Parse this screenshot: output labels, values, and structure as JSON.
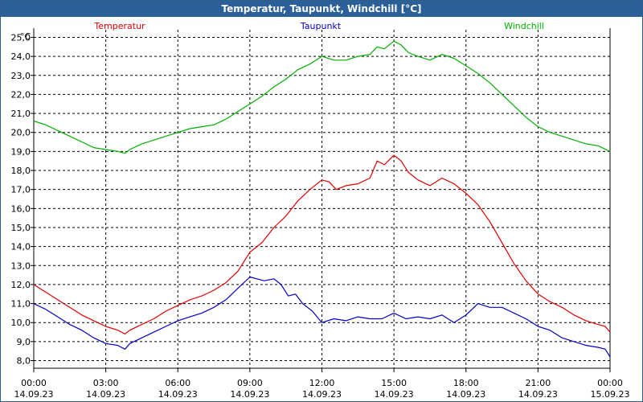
{
  "window": {
    "title": "Temperatur, Taupunkt, Windchill [°C]"
  },
  "colors": {
    "title_bg": "#2a5f98",
    "temperature": "#e00000",
    "dewpoint": "#0000c8",
    "windchill": "#00b000",
    "grid": "#000000"
  },
  "chart_data": {
    "type": "line",
    "title": "Temperatur, Taupunkt, Windchill [°C]",
    "unit_label": "°C",
    "ylim": [
      7.6,
      25.4
    ],
    "yticks": [
      "8,0",
      "9,0",
      "10,0",
      "11,0",
      "12,0",
      "13,0",
      "14,0",
      "15,0",
      "16,0",
      "17,0",
      "18,0",
      "19,0",
      "20,0",
      "21,0",
      "22,0",
      "23,0",
      "24,0",
      "25,0"
    ],
    "ytick_values": [
      8,
      9,
      10,
      11,
      12,
      13,
      14,
      15,
      16,
      17,
      18,
      19,
      20,
      21,
      22,
      23,
      24,
      25
    ],
    "xlim": [
      0,
      24
    ],
    "xticks": [
      {
        "h": 0,
        "time": "00:00",
        "date": "14.09.23"
      },
      {
        "h": 3,
        "time": "03:00",
        "date": "14.09.23"
      },
      {
        "h": 6,
        "time": "06:00",
        "date": "14.09.23"
      },
      {
        "h": 9,
        "time": "09:00",
        "date": "14.09.23"
      },
      {
        "h": 12,
        "time": "12:00",
        "date": "14.09.23"
      },
      {
        "h": 15,
        "time": "15:00",
        "date": "14.09.23"
      },
      {
        "h": 18,
        "time": "18:00",
        "date": "14.09.23"
      },
      {
        "h": 21,
        "time": "21:00",
        "date": "14.09.23"
      },
      {
        "h": 24,
        "time": "00:00",
        "date": "15.09.23"
      }
    ],
    "grid": true,
    "series": [
      {
        "name": "Temperatur",
        "color": "#e00000",
        "x": [
          0,
          0.5,
          1,
          1.5,
          2,
          2.5,
          3,
          3.5,
          3.8,
          4,
          4.5,
          5,
          5.5,
          6,
          6.5,
          7,
          7.5,
          8,
          8.5,
          9,
          9.5,
          10,
          10.5,
          11,
          11.5,
          12,
          12.3,
          12.6,
          13,
          13.5,
          14,
          14.3,
          14.6,
          15,
          15.3,
          15.6,
          16,
          16.5,
          17,
          17.5,
          18,
          18.5,
          19,
          19.5,
          20,
          20.5,
          21,
          21.5,
          22,
          22.5,
          23,
          23.5,
          23.8,
          24
        ],
        "values": [
          12.0,
          11.6,
          11.2,
          10.8,
          10.4,
          10.1,
          9.8,
          9.6,
          9.4,
          9.6,
          9.9,
          10.2,
          10.6,
          10.9,
          11.2,
          11.4,
          11.7,
          12.1,
          12.7,
          13.7,
          14.2,
          15.0,
          15.6,
          16.4,
          17.0,
          17.5,
          17.4,
          17.0,
          17.2,
          17.3,
          17.6,
          18.5,
          18.3,
          18.8,
          18.5,
          17.9,
          17.5,
          17.2,
          17.6,
          17.3,
          16.8,
          16.2,
          15.3,
          14.2,
          13.1,
          12.2,
          11.5,
          11.1,
          10.8,
          10.4,
          10.1,
          9.9,
          9.8,
          9.5
        ]
      },
      {
        "name": "Taupunkt",
        "color": "#0000c8",
        "x": [
          0,
          0.5,
          1,
          1.5,
          2,
          2.5,
          3,
          3.5,
          3.8,
          4,
          4.5,
          5,
          5.5,
          6,
          6.5,
          7,
          7.5,
          8,
          8.5,
          9,
          9.3,
          9.6,
          10,
          10.3,
          10.6,
          10.9,
          11.2,
          11.6,
          12,
          12.5,
          13,
          13.5,
          14,
          14.5,
          15,
          15.5,
          16,
          16.5,
          17,
          17.5,
          18,
          18.5,
          19,
          19.5,
          20,
          20.5,
          21,
          21.5,
          22,
          22.5,
          23,
          23.5,
          23.8,
          24
        ],
        "values": [
          11.0,
          10.7,
          10.3,
          9.9,
          9.6,
          9.2,
          8.9,
          8.8,
          8.6,
          8.9,
          9.2,
          9.5,
          9.8,
          10.1,
          10.3,
          10.5,
          10.8,
          11.2,
          11.8,
          12.4,
          12.3,
          12.2,
          12.3,
          12.0,
          11.4,
          11.5,
          11.0,
          10.6,
          10.0,
          10.2,
          10.1,
          10.3,
          10.2,
          10.2,
          10.5,
          10.2,
          10.3,
          10.2,
          10.4,
          10.0,
          10.4,
          11.0,
          10.8,
          10.8,
          10.5,
          10.2,
          9.8,
          9.6,
          9.2,
          9.0,
          8.8,
          8.7,
          8.6,
          8.2
        ]
      },
      {
        "name": "Windchill",
        "color": "#00b000",
        "x": [
          0,
          0.5,
          1,
          1.5,
          2,
          2.5,
          3,
          3.5,
          3.8,
          4,
          4.5,
          5,
          5.5,
          6,
          6.5,
          7,
          7.5,
          8,
          8.5,
          9,
          9.5,
          10,
          10.5,
          11,
          11.5,
          12,
          12.5,
          13,
          13.5,
          14,
          14.3,
          14.6,
          15,
          15.3,
          15.6,
          16,
          16.5,
          17,
          17.5,
          18,
          18.5,
          19,
          19.5,
          20,
          20.5,
          21,
          21.5,
          22,
          22.5,
          23,
          23.5,
          24
        ],
        "values": [
          20.6,
          20.4,
          20.1,
          19.8,
          19.5,
          19.2,
          19.1,
          19.0,
          18.9,
          19.1,
          19.4,
          19.6,
          19.8,
          20.0,
          20.2,
          20.3,
          20.4,
          20.7,
          21.1,
          21.5,
          21.9,
          22.4,
          22.8,
          23.3,
          23.6,
          24.0,
          23.8,
          23.8,
          24.0,
          24.1,
          24.5,
          24.4,
          24.8,
          24.6,
          24.2,
          24.0,
          23.8,
          24.1,
          23.9,
          23.5,
          23.1,
          22.6,
          22.0,
          21.4,
          20.8,
          20.3,
          20.0,
          19.8,
          19.6,
          19.4,
          19.3,
          19.0
        ]
      }
    ]
  }
}
